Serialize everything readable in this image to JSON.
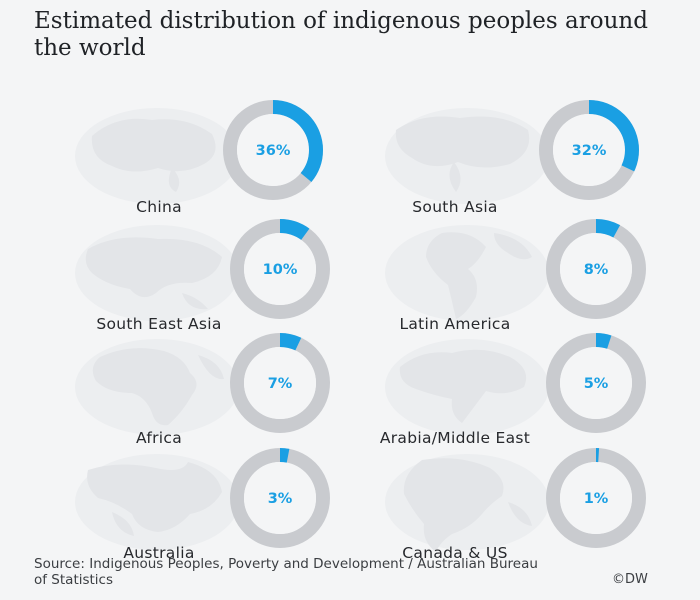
{
  "title": "Estimated distribution of indigenous peoples around the world",
  "source": "Source: Indigenous Peoples, Poverty and Development / Australian Bureau of Statistics",
  "credit": "©DW",
  "colors": {
    "accent": "#1a9fe3",
    "ring": "#c9cbcf",
    "ring_center": "#f4f5f6",
    "map": "#e3e5e8",
    "background": "#f4f5f6"
  },
  "chart_data": {
    "type": "pie",
    "title": "Estimated distribution of indigenous peoples around the world",
    "unit": "%",
    "categories": [
      "China",
      "South Asia",
      "South East Asia",
      "Latin America",
      "Africa",
      "Arabia/Middle East",
      "Australia",
      "Canada & US"
    ],
    "values": [
      36,
      32,
      10,
      8,
      7,
      5,
      3,
      1
    ],
    "labels": [
      "36%",
      "32%",
      "10%",
      "8%",
      "7%",
      "5%",
      "3%",
      "1%"
    ],
    "map_icon": "globe-map-icon"
  }
}
